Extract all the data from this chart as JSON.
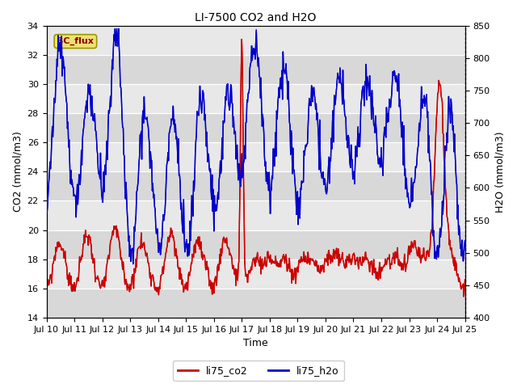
{
  "title": "LI-7500 CO2 and H2O",
  "xlabel": "Time",
  "ylabel_left": "CO2 (mmol/m3)",
  "ylabel_right": "H2O (mmol/m3)",
  "ylim_left": [
    14,
    34
  ],
  "ylim_right": [
    400,
    850
  ],
  "xlim": [
    0,
    360
  ],
  "xtick_positions": [
    0,
    24,
    48,
    72,
    96,
    120,
    144,
    168,
    192,
    216,
    240,
    264,
    288,
    312,
    336,
    360
  ],
  "xtick_labels": [
    "Jul 10",
    "Jul 11",
    "Jul 12",
    "Jul 13",
    "Jul 14",
    "Jul 15",
    "Jul 16",
    "Jul 17",
    "Jul 18",
    "Jul 19",
    "Jul 20",
    "Jul 21",
    "Jul 22",
    "Jul 23",
    "Jul 24",
    "Jul 25"
  ],
  "yticks_left": [
    14,
    16,
    18,
    20,
    22,
    24,
    26,
    28,
    30,
    32,
    34
  ],
  "yticks_right": [
    400,
    450,
    500,
    550,
    600,
    650,
    700,
    750,
    800,
    850
  ],
  "color_co2": "#cc0000",
  "color_h2o": "#0000cc",
  "legend_labels": [
    "li75_co2",
    "li75_h2o"
  ],
  "bc_flux_label": "BC_flux",
  "plot_bg_color": "#e8e8e8",
  "fig_bg_color": "#ffffff",
  "title_fontsize": 10,
  "label_fontsize": 9,
  "tick_fontsize": 8,
  "legend_fontsize": 9,
  "line_width": 1.0
}
